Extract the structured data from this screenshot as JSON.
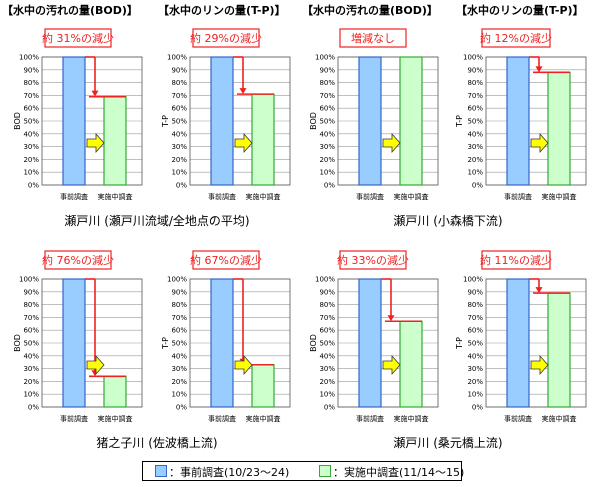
{
  "headers": [
    "【水中の汚れの量(BOD)】",
    "【水中のリンの量(T-P)】",
    "【水中の汚れの量(BOD)】",
    "【水中のリンの量(T-P)】"
  ],
  "captions": [
    "瀬戸川 (瀬戸川流域/全地点の平均)",
    "瀬戸川 (小森橋下流)",
    "猪之子川 (佐波橋上流)",
    "瀬戸川 (桑元橋上流)"
  ],
  "legend": {
    "before_label": "：事前調査(10/23～24)",
    "after_label": "：実施中調査(11/14～15)"
  },
  "colors": {
    "before_fill": "#99ccff",
    "before_stroke": "#3366cc",
    "after_fill": "#ccffcc",
    "after_stroke": "#33aa33",
    "accent": "#ee2222",
    "arrow": "#ffff00"
  },
  "chart_data": [
    {
      "type": "bar",
      "ylabel": "BOD",
      "categories": [
        "事前調査",
        "実施中調査"
      ],
      "values": [
        100,
        69
      ],
      "ylim": [
        0,
        100
      ],
      "yticks": [
        "0%",
        "10%",
        "20%",
        "30%",
        "40%",
        "50%",
        "60%",
        "70%",
        "80%",
        "90%",
        "100%"
      ],
      "annotation": "約 31%の減少",
      "grid": true
    },
    {
      "type": "bar",
      "ylabel": "T-P",
      "categories": [
        "事前調査",
        "実施中調査"
      ],
      "values": [
        100,
        71
      ],
      "ylim": [
        0,
        100
      ],
      "yticks": [
        "0%",
        "10%",
        "20%",
        "30%",
        "40%",
        "50%",
        "60%",
        "70%",
        "80%",
        "90%",
        "100%"
      ],
      "annotation": "約 29%の減少",
      "grid": true
    },
    {
      "type": "bar",
      "ylabel": "BOD",
      "categories": [
        "事前調査",
        "実施中調査"
      ],
      "values": [
        100,
        100
      ],
      "ylim": [
        0,
        100
      ],
      "yticks": [
        "0%",
        "10%",
        "20%",
        "30%",
        "40%",
        "50%",
        "60%",
        "70%",
        "80%",
        "90%",
        "100%"
      ],
      "annotation": "増減なし",
      "grid": true
    },
    {
      "type": "bar",
      "ylabel": "T-P",
      "categories": [
        "事前調査",
        "実施中調査"
      ],
      "values": [
        100,
        88
      ],
      "ylim": [
        0,
        100
      ],
      "yticks": [
        "0%",
        "10%",
        "20%",
        "30%",
        "40%",
        "50%",
        "60%",
        "70%",
        "80%",
        "90%",
        "100%"
      ],
      "annotation": "約 12%の減少",
      "grid": true
    },
    {
      "type": "bar",
      "ylabel": "BOD",
      "categories": [
        "事前調査",
        "実施中調査"
      ],
      "values": [
        100,
        24
      ],
      "ylim": [
        0,
        100
      ],
      "yticks": [
        "0%",
        "10%",
        "20%",
        "30%",
        "40%",
        "50%",
        "60%",
        "70%",
        "80%",
        "90%",
        "100%"
      ],
      "annotation": "約 76%の減少",
      "grid": true
    },
    {
      "type": "bar",
      "ylabel": "T-P",
      "categories": [
        "事前調査",
        "実施中調査"
      ],
      "values": [
        100,
        33
      ],
      "ylim": [
        0,
        100
      ],
      "yticks": [
        "0%",
        "10%",
        "20%",
        "30%",
        "40%",
        "50%",
        "60%",
        "70%",
        "80%",
        "90%",
        "100%"
      ],
      "annotation": "約 67%の減少",
      "grid": true
    },
    {
      "type": "bar",
      "ylabel": "BOD",
      "categories": [
        "事前調査",
        "実施中調査"
      ],
      "values": [
        100,
        67
      ],
      "ylim": [
        0,
        100
      ],
      "yticks": [
        "0%",
        "10%",
        "20%",
        "30%",
        "40%",
        "50%",
        "60%",
        "70%",
        "80%",
        "90%",
        "100%"
      ],
      "annotation": "約 33%の減少",
      "grid": true
    },
    {
      "type": "bar",
      "ylabel": "T-P",
      "categories": [
        "事前調査",
        "実施中調査"
      ],
      "values": [
        100,
        89
      ],
      "ylim": [
        0,
        100
      ],
      "yticks": [
        "0%",
        "10%",
        "20%",
        "30%",
        "40%",
        "50%",
        "60%",
        "70%",
        "80%",
        "90%",
        "100%"
      ],
      "annotation": "約 11%の減少",
      "grid": true
    }
  ]
}
